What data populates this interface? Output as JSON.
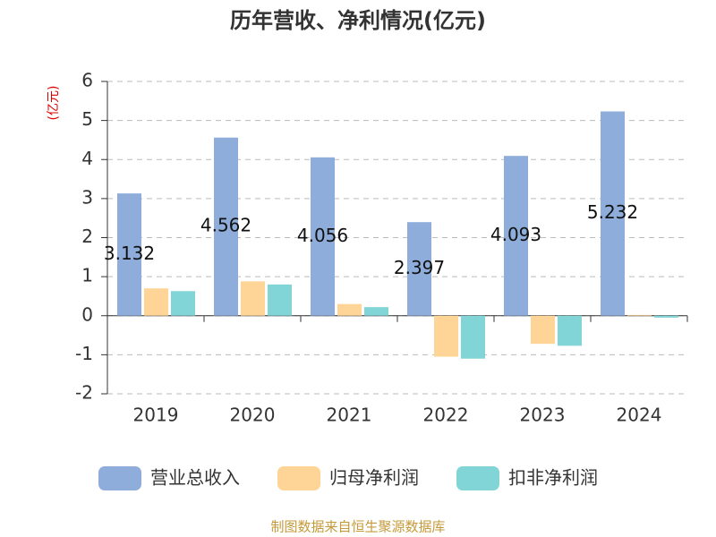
{
  "chart_data": {
    "type": "bar",
    "title": "历年营收、净利情况(亿元)",
    "y_label": "(亿元)",
    "categories": [
      "2019",
      "2020",
      "2021",
      "2022",
      "2023",
      "2024"
    ],
    "series": [
      {
        "name": "营业总收入",
        "color": "#8eaddb",
        "values": [
          3.132,
          4.562,
          4.056,
          2.397,
          4.093,
          5.232
        ],
        "show_labels": true
      },
      {
        "name": "归母净利润",
        "color": "#fed597",
        "values": [
          0.7,
          0.88,
          0.3,
          -1.05,
          -0.72,
          0.02
        ]
      },
      {
        "name": "扣非净利润",
        "color": "#82d5d6",
        "values": [
          0.63,
          0.8,
          0.22,
          -1.1,
          -0.77,
          -0.05
        ]
      }
    ],
    "ylim": [
      -2,
      6
    ],
    "yticks": [
      -2,
      -1,
      0,
      1,
      2,
      3,
      4,
      5,
      6
    ],
    "grid": true,
    "source": "制图数据来自恒生聚源数据库"
  }
}
